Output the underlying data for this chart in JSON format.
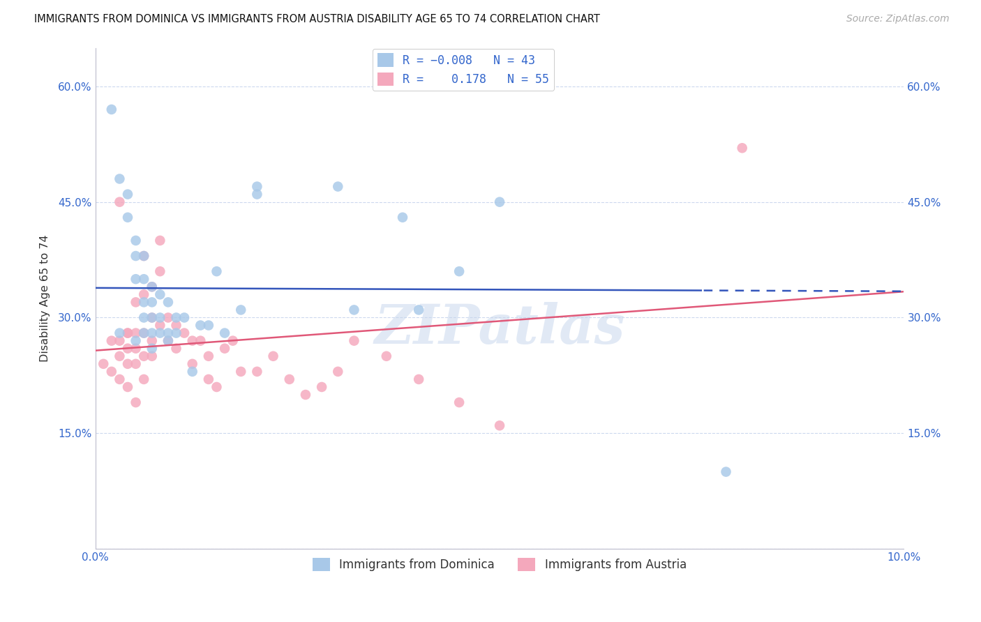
{
  "title": "IMMIGRANTS FROM DOMINICA VS IMMIGRANTS FROM AUSTRIA DISABILITY AGE 65 TO 74 CORRELATION CHART",
  "source": "Source: ZipAtlas.com",
  "ylabel": "Disability Age 65 to 74",
  "xlim": [
    0.0,
    0.1
  ],
  "ylim": [
    0.0,
    0.65
  ],
  "r_dominica": -0.008,
  "n_dominica": 43,
  "r_austria": 0.178,
  "n_austria": 55,
  "color_dominica": "#a8c8e8",
  "color_austria": "#f4a8bc",
  "trendline_dominica": "#3355bb",
  "trendline_austria": "#e05878",
  "background_color": "#ffffff",
  "grid_color": "#ccd8ee",
  "watermark": "ZIPatlas",
  "dominica_x": [
    0.002,
    0.003,
    0.004,
    0.004,
    0.005,
    0.005,
    0.005,
    0.006,
    0.006,
    0.006,
    0.006,
    0.007,
    0.007,
    0.007,
    0.007,
    0.008,
    0.008,
    0.009,
    0.009,
    0.01,
    0.01,
    0.011,
    0.013,
    0.014,
    0.015,
    0.016,
    0.018,
    0.02,
    0.02,
    0.03,
    0.032,
    0.038,
    0.04,
    0.045,
    0.05,
    0.008,
    0.005,
    0.006,
    0.007,
    0.009,
    0.012,
    0.078,
    0.003
  ],
  "dominica_y": [
    0.57,
    0.48,
    0.46,
    0.43,
    0.4,
    0.38,
    0.35,
    0.38,
    0.35,
    0.32,
    0.3,
    0.34,
    0.32,
    0.3,
    0.28,
    0.33,
    0.3,
    0.32,
    0.28,
    0.3,
    0.28,
    0.3,
    0.29,
    0.29,
    0.36,
    0.28,
    0.31,
    0.47,
    0.46,
    0.47,
    0.31,
    0.43,
    0.31,
    0.36,
    0.45,
    0.28,
    0.27,
    0.28,
    0.26,
    0.27,
    0.23,
    0.1,
    0.28
  ],
  "austria_x": [
    0.001,
    0.002,
    0.002,
    0.003,
    0.003,
    0.003,
    0.004,
    0.004,
    0.004,
    0.004,
    0.005,
    0.005,
    0.005,
    0.005,
    0.005,
    0.006,
    0.006,
    0.006,
    0.006,
    0.007,
    0.007,
    0.007,
    0.007,
    0.008,
    0.008,
    0.008,
    0.009,
    0.009,
    0.01,
    0.01,
    0.011,
    0.012,
    0.012,
    0.013,
    0.014,
    0.014,
    0.015,
    0.016,
    0.017,
    0.018,
    0.02,
    0.022,
    0.024,
    0.026,
    0.028,
    0.03,
    0.032,
    0.036,
    0.04,
    0.045,
    0.05,
    0.08,
    0.003,
    0.004,
    0.006
  ],
  "austria_y": [
    0.24,
    0.27,
    0.23,
    0.27,
    0.25,
    0.22,
    0.28,
    0.26,
    0.24,
    0.21,
    0.32,
    0.28,
    0.26,
    0.24,
    0.19,
    0.38,
    0.33,
    0.28,
    0.25,
    0.34,
    0.3,
    0.27,
    0.25,
    0.4,
    0.36,
    0.29,
    0.3,
    0.27,
    0.29,
    0.26,
    0.28,
    0.27,
    0.24,
    0.27,
    0.25,
    0.22,
    0.21,
    0.26,
    0.27,
    0.23,
    0.23,
    0.25,
    0.22,
    0.2,
    0.21,
    0.23,
    0.27,
    0.25,
    0.22,
    0.19,
    0.16,
    0.52,
    0.45,
    0.28,
    0.22
  ]
}
